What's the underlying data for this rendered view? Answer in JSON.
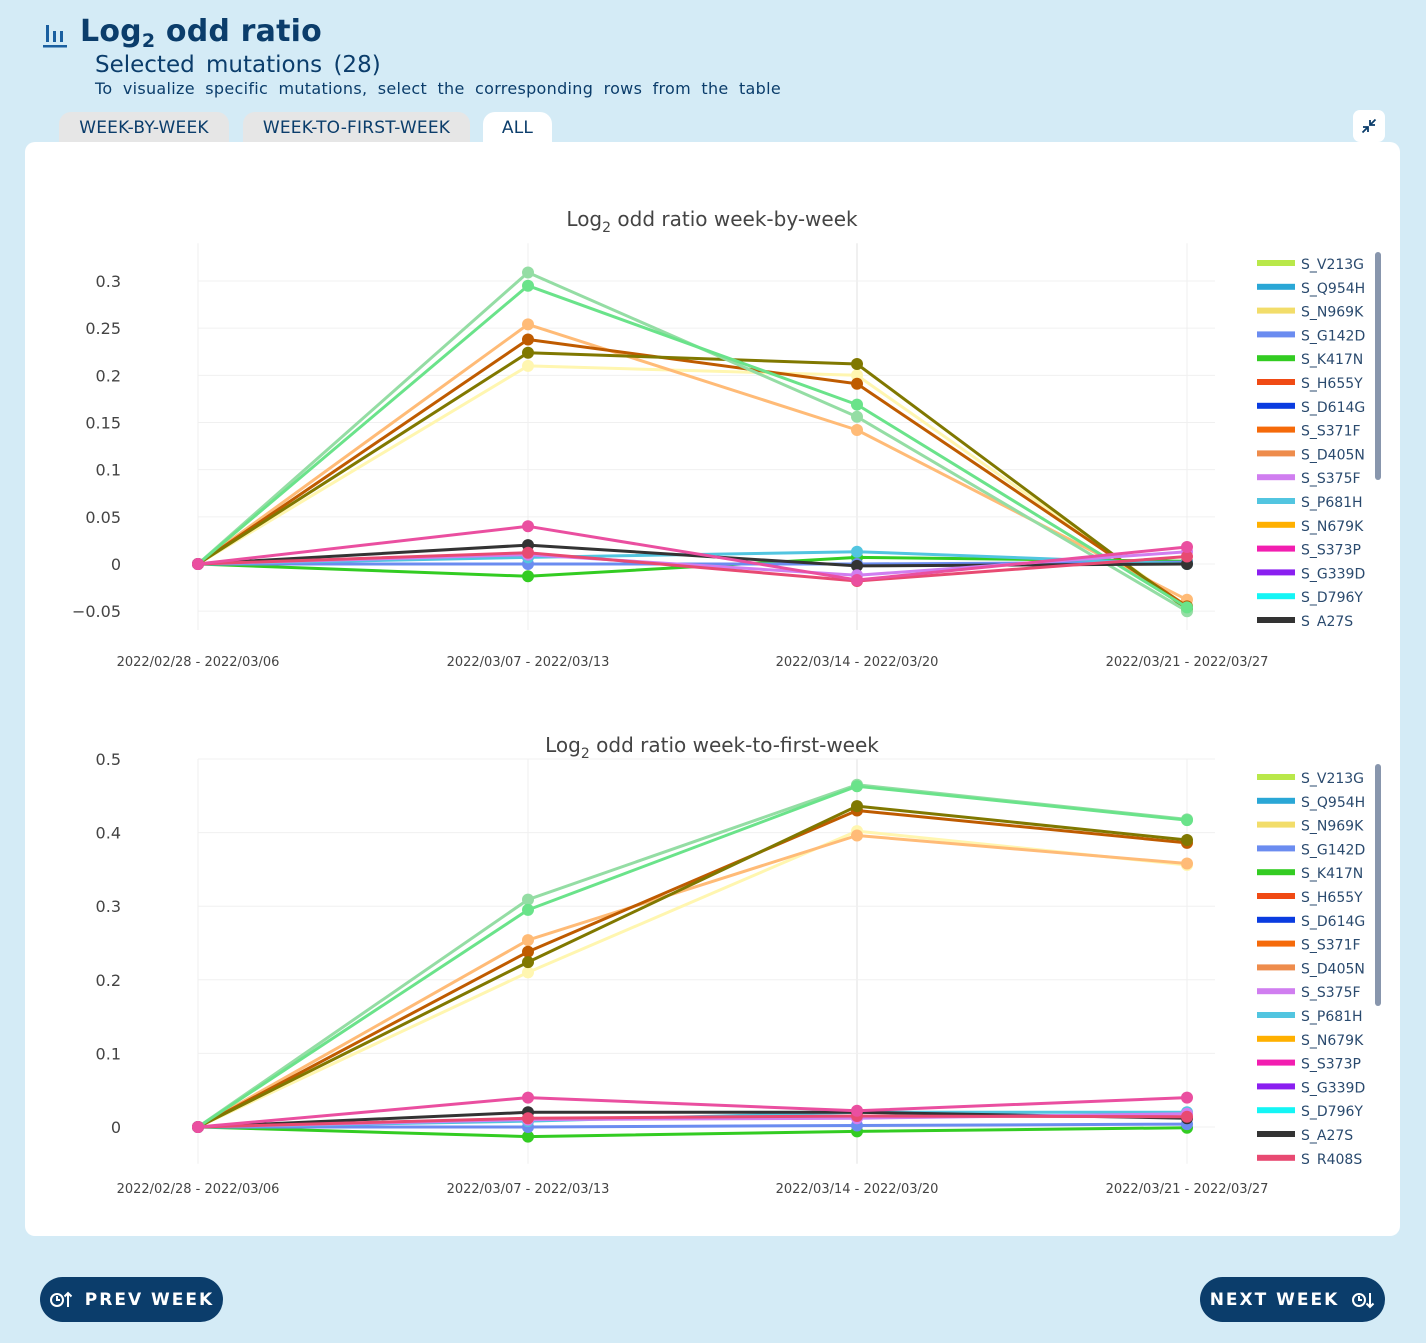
{
  "header": {
    "title_main": "Log",
    "title_sub": "2",
    "title_rest": " odd ratio",
    "subtitle": "Selected mutations (28)",
    "hint": "To visualize specific mutations, select the corresponding rows from the table"
  },
  "tabs": [
    {
      "label": "WEEK-BY-WEEK",
      "active": false
    },
    {
      "label": "WEEK-TO-FIRST-WEEK",
      "active": false
    },
    {
      "label": "ALL",
      "active": true
    }
  ],
  "buttons": {
    "prev": "PREV WEEK",
    "next": "NEXT WEEK"
  },
  "legend_colors": {
    "S_V213G": "#b9e84a",
    "S_Q954H": "#2aa7d6",
    "S_N969K": "#f2dd6a",
    "S_G142D": "#6b8cf0",
    "S_K417N": "#33cc22",
    "S_H655Y": "#f04a14",
    "S_D614G": "#0a3ce0",
    "S_S371F": "#f56a0a",
    "S_D405N": "#ee8c4c",
    "S_S375F": "#d07ef0",
    "S_P681H": "#52c5e0",
    "S_N679K": "#ffb000",
    "S_S373P": "#f21eb0",
    "S_G339D": "#8a1ff0",
    "S_D796Y": "#14f5f5",
    "S_A27S": "#333333",
    "S_R408S": "#e84a72"
  },
  "chart_data": [
    {
      "type": "line",
      "title_main": "Log",
      "title_sub": "2",
      "title_rest": " odd ratio week-by-week",
      "categories": [
        "2022/02/28 - 2022/03/06",
        "2022/03/07 - 2022/03/13",
        "2022/03/14 - 2022/03/20",
        "2022/03/21 - 2022/03/27"
      ],
      "ylim": [
        -0.07,
        0.34
      ],
      "yticks": [
        -0.05,
        0,
        0.05,
        0.1,
        0.15,
        0.2,
        0.25,
        0.3
      ],
      "ytick_labels": [
        "−0.05",
        "0",
        "0.05",
        "0.1",
        "0.15",
        "0.2",
        "0.25",
        "0.3"
      ],
      "legend": [
        "S_V213G",
        "S_Q954H",
        "S_N969K",
        "S_G142D",
        "S_K417N",
        "S_H655Y",
        "S_D614G",
        "S_S371F",
        "S_D405N",
        "S_S375F",
        "S_P681H",
        "S_N679K",
        "S_S373P",
        "S_G339D",
        "S_D796Y",
        "S_A27S",
        "S_R408S"
      ],
      "series": [
        {
          "color": "#fff6b0",
          "values": [
            0,
            0.21,
            0.2,
            -0.045
          ]
        },
        {
          "color": "#ffbb77",
          "values": [
            0,
            0.254,
            0.142,
            -0.038
          ]
        },
        {
          "color": "#bf5b00",
          "values": [
            0,
            0.238,
            0.191,
            -0.045
          ]
        },
        {
          "color": "#807800",
          "values": [
            0,
            0.224,
            0.212,
            -0.048
          ]
        },
        {
          "color": "#94dda4",
          "values": [
            0,
            0.309,
            0.156,
            -0.05
          ]
        },
        {
          "color": "#6ae38a",
          "values": [
            0,
            0.295,
            0.169,
            -0.046
          ]
        },
        {
          "color": "#33cc22",
          "values": [
            0,
            -0.013,
            0.007,
            0.003
          ]
        },
        {
          "color": "#6b8cf0",
          "values": [
            0,
            0.0,
            0.0,
            0.002
          ]
        },
        {
          "color": "#52c5e0",
          "values": [
            0,
            0.007,
            0.013,
            0.0
          ]
        },
        {
          "color": "#333333",
          "values": [
            0,
            0.02,
            -0.002,
            0.0
          ]
        },
        {
          "color": "#d07ef0",
          "values": [
            0,
            0.01,
            -0.012,
            0.013
          ]
        },
        {
          "color": "#e84a72",
          "values": [
            0,
            0.012,
            -0.018,
            0.008
          ]
        },
        {
          "color": "#ea4fa0",
          "values": [
            0,
            0.04,
            -0.017,
            0.018
          ]
        }
      ]
    },
    {
      "type": "line",
      "title_main": "Log",
      "title_sub": "2",
      "title_rest": " odd ratio week-to-first-week",
      "categories": [
        "2022/02/28 - 2022/03/06",
        "2022/03/07 - 2022/03/13",
        "2022/03/14 - 2022/03/20",
        "2022/03/21 - 2022/03/27"
      ],
      "ylim": [
        -0.05,
        0.5
      ],
      "yticks": [
        0,
        0.1,
        0.2,
        0.3,
        0.4,
        0.5
      ],
      "ytick_labels": [
        "0",
        "0.1",
        "0.2",
        "0.3",
        "0.4",
        "0.5"
      ],
      "legend": [
        "S_V213G",
        "S_Q954H",
        "S_N969K",
        "S_G142D",
        "S_K417N",
        "S_H655Y",
        "S_D614G",
        "S_S371F",
        "S_D405N",
        "S_S375F",
        "S_P681H",
        "S_N679K",
        "S_S373P",
        "S_G339D",
        "S_D796Y",
        "S_A27S",
        "S_R408S"
      ],
      "series": [
        {
          "color": "#fff6b0",
          "values": [
            0,
            0.21,
            0.402,
            0.356
          ]
        },
        {
          "color": "#ffbb77",
          "values": [
            0,
            0.254,
            0.396,
            0.358
          ]
        },
        {
          "color": "#bf5b00",
          "values": [
            0,
            0.238,
            0.43,
            0.386
          ]
        },
        {
          "color": "#807800",
          "values": [
            0,
            0.224,
            0.436,
            0.39
          ]
        },
        {
          "color": "#94dda4",
          "values": [
            0,
            0.309,
            0.465,
            0.418
          ]
        },
        {
          "color": "#6ae38a",
          "values": [
            0,
            0.295,
            0.463,
            0.417
          ]
        },
        {
          "color": "#33cc22",
          "values": [
            0,
            -0.013,
            -0.006,
            -0.001
          ]
        },
        {
          "color": "#6b8cf0",
          "values": [
            0,
            0.0,
            0.002,
            0.004
          ]
        },
        {
          "color": "#52c5e0",
          "values": [
            0,
            0.008,
            0.02,
            0.02
          ]
        },
        {
          "color": "#333333",
          "values": [
            0,
            0.02,
            0.02,
            0.012
          ]
        },
        {
          "color": "#d07ef0",
          "values": [
            0,
            0.01,
            0.012,
            0.018
          ]
        },
        {
          "color": "#e84a72",
          "values": [
            0,
            0.012,
            0.015,
            0.014
          ]
        },
        {
          "color": "#ea4fa0",
          "values": [
            0,
            0.04,
            0.022,
            0.04
          ]
        }
      ]
    }
  ]
}
